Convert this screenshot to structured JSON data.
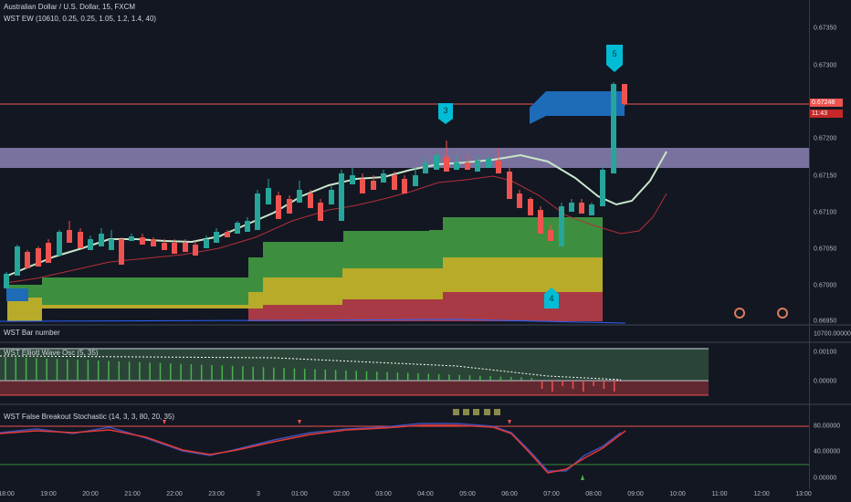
{
  "main": {
    "legend_line1": "Australian Dollar / U.S. Dollar, 15, FXCM",
    "legend_line2": "WST EW (10610, 0.25, 0.25, 1.05, 1.2, 1.4, 40)",
    "wave_labels": [
      "3",
      "4",
      "5"
    ],
    "price_axis": [
      "0.67350",
      "0.67300",
      "0.67200",
      "0.67150",
      "0.67100",
      "0.67050",
      "0.67000",
      "0.66950"
    ],
    "last_price": "0.67248",
    "countdown": "11:43"
  },
  "bar_number": {
    "legend": "WST Bar number",
    "axis_label": "10700.00000"
  },
  "elliott_osc": {
    "legend": "WST Elliott Wave Osc (5, 35)",
    "axis": [
      "0.00100",
      "0.00000"
    ]
  },
  "stochastic": {
    "legend": "WST False Breakout Stochastic (14, 3, 3, 80, 20, 35)",
    "axis": [
      "80.00000",
      "40.00000",
      "0.00000"
    ]
  },
  "time_axis": [
    "18:00",
    "19:00",
    "20:00",
    "21:00",
    "22:00",
    "23:00",
    "3",
    "01:00",
    "02:00",
    "03:00",
    "04:00",
    "05:00",
    "06:00",
    "07:00",
    "08:00",
    "09:00",
    "10:00",
    "11:00",
    "12:00",
    "13:00"
  ],
  "colors": {
    "up": "#26a69a",
    "down": "#ef5350",
    "band_green": "#388e3c",
    "band_yellow": "#c0b228",
    "band_red": "#b23a48",
    "zone": "#9c92c8",
    "badge": "#00bcd4"
  }
}
